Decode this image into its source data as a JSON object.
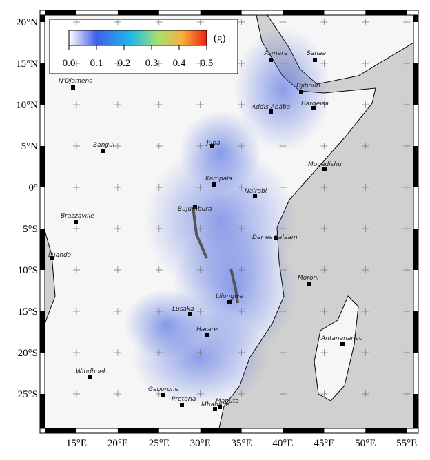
{
  "map": {
    "lon_ticks": [
      {
        "value": 15,
        "label": "15°E"
      },
      {
        "value": 20,
        "label": "20°E"
      },
      {
        "value": 25,
        "label": "25°E"
      },
      {
        "value": 30,
        "label": "30°E"
      },
      {
        "value": 35,
        "label": "35°E"
      },
      {
        "value": 40,
        "label": "40°E"
      },
      {
        "value": 45,
        "label": "45°E"
      },
      {
        "value": 50,
        "label": "50°E"
      },
      {
        "value": 55,
        "label": "55°E"
      }
    ],
    "lat_ticks": [
      {
        "value": 20,
        "label": "20°N"
      },
      {
        "value": 15,
        "label": "15°N"
      },
      {
        "value": 10,
        "label": "10°N"
      },
      {
        "value": 5,
        "label": "5°N"
      },
      {
        "value": 0,
        "label": "0°"
      },
      {
        "value": -5,
        "label": "5°S"
      },
      {
        "value": -10,
        "label": "10°S"
      },
      {
        "value": -15,
        "label": "15°S"
      },
      {
        "value": -20,
        "label": "20°S"
      },
      {
        "value": -25,
        "label": "25°S"
      }
    ],
    "colorbar": {
      "unit": "(g)",
      "range": [
        0,
        0.5
      ],
      "ticks": [
        {
          "value": 0,
          "label": "0.0"
        },
        0.1,
        0.2,
        0.3,
        0.4,
        0.5
      ]
    },
    "cities": [
      "Asmara",
      "Sanaa",
      "N'Djamena",
      "Djibouti",
      "Addis Ababa",
      "Hargeisa",
      "Bangui",
      "Juba",
      "Mogadishu",
      "Kampala",
      "Nairobi",
      "Bujumbura",
      "Brazzaville",
      "Dar es Salaam",
      "Luanda",
      "Moroni",
      "Lilongwe",
      "Lusaka",
      "Harare",
      "Antananarivo",
      "Windhoek",
      "Gaborone",
      "Pretoria",
      "Maputo",
      "Mbabane"
    ]
  }
}
